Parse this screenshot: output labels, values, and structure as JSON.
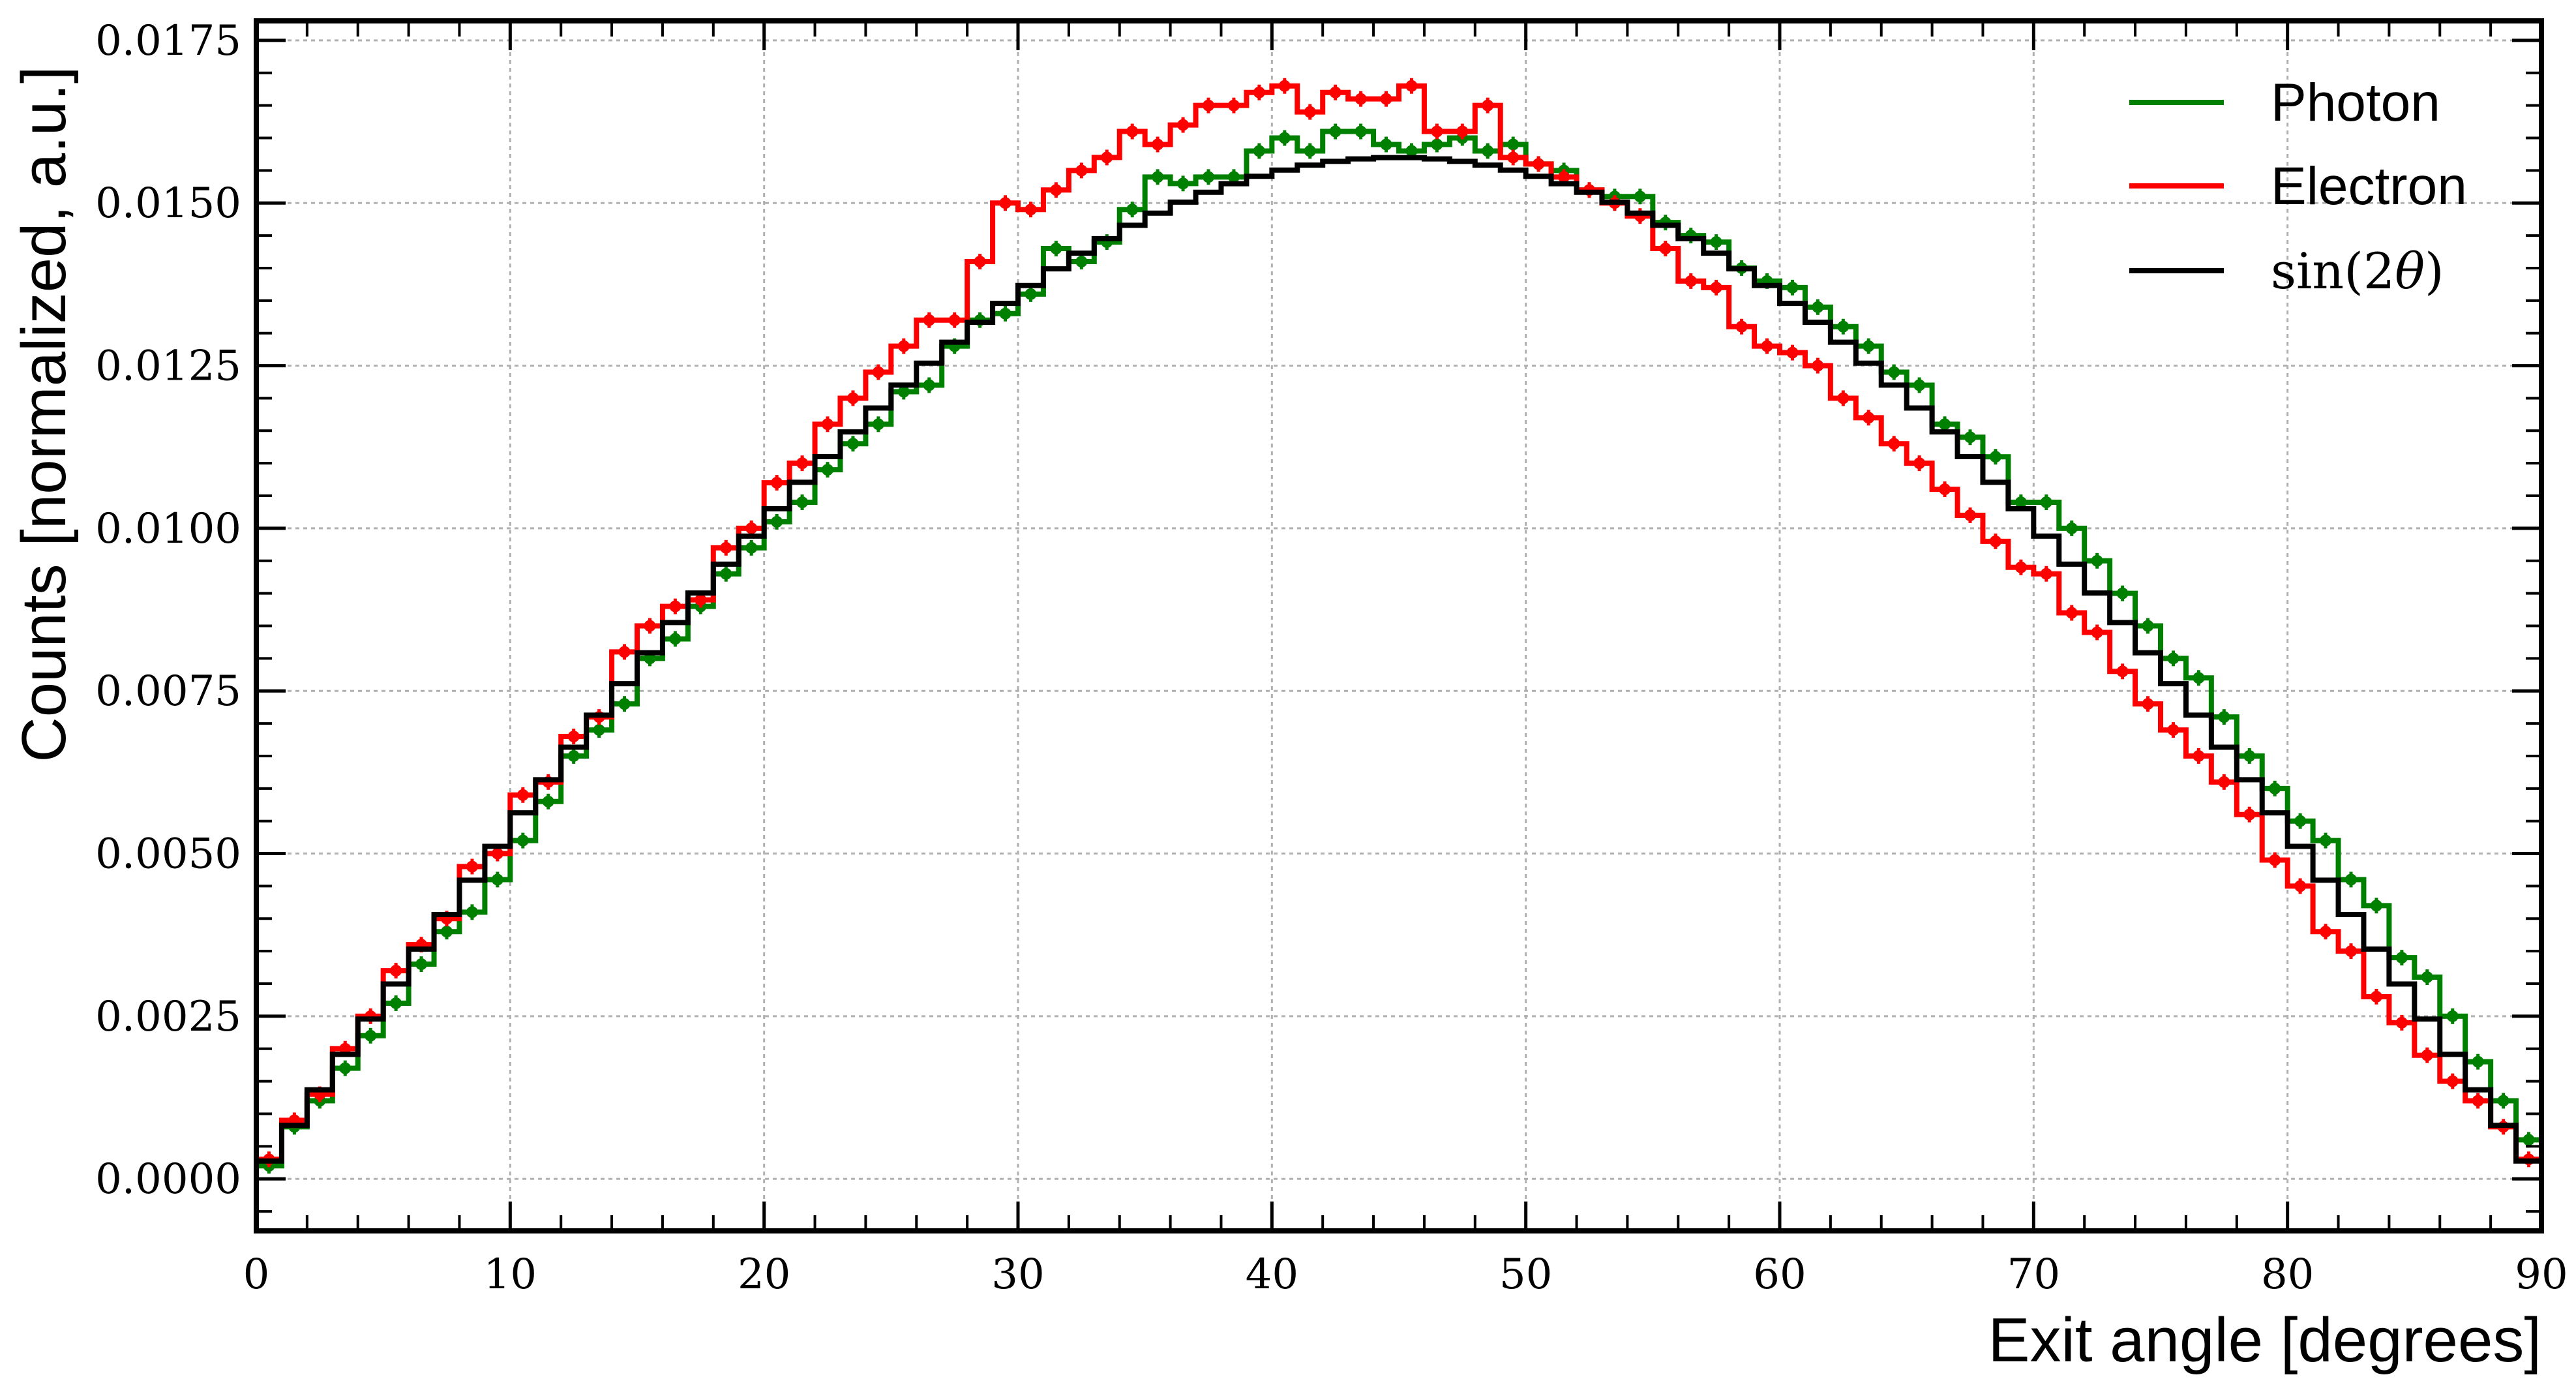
{
  "chart_data": {
    "type": "line",
    "xlabel": "Exit angle [degrees]",
    "ylabel": "Counts [normalized, a.u.]",
    "xlim": [
      0,
      90
    ],
    "ylim": [
      -0.0008,
      0.0178
    ],
    "xticks": [
      0,
      10,
      20,
      30,
      40,
      50,
      60,
      70,
      80,
      90
    ],
    "xtick_labels": [
      "0",
      "10",
      "20",
      "30",
      "40",
      "50",
      "60",
      "70",
      "80",
      "90"
    ],
    "yticks": [
      0.0,
      0.0025,
      0.005,
      0.0075,
      0.01,
      0.0125,
      0.015,
      0.0175
    ],
    "ytick_labels": [
      "0.0000",
      "0.0025",
      "0.0050",
      "0.0075",
      "0.0100",
      "0.0125",
      "0.0150",
      "0.0175"
    ],
    "grid": true,
    "legend_position": "top-right",
    "bin_width": 1,
    "bin_edges_start": 0,
    "series": [
      {
        "name": "Photon",
        "style": "step-with-errorbars",
        "color": "#008000",
        "error": 0.00012,
        "values": [
          0.0002,
          0.0008,
          0.0012,
          0.0017,
          0.0022,
          0.0027,
          0.0033,
          0.0038,
          0.0041,
          0.0046,
          0.0052,
          0.0058,
          0.0065,
          0.0069,
          0.0073,
          0.008,
          0.0083,
          0.0088,
          0.0093,
          0.0097,
          0.0101,
          0.0104,
          0.0109,
          0.0113,
          0.0116,
          0.0121,
          0.0122,
          0.0128,
          0.0132,
          0.0133,
          0.0136,
          0.0143,
          0.0141,
          0.0144,
          0.0149,
          0.0154,
          0.0153,
          0.0154,
          0.0154,
          0.0158,
          0.016,
          0.0158,
          0.0161,
          0.0161,
          0.0159,
          0.0158,
          0.0159,
          0.016,
          0.0158,
          0.0159,
          0.0156,
          0.0155,
          0.0152,
          0.0151,
          0.0151,
          0.0147,
          0.0145,
          0.0144,
          0.014,
          0.0138,
          0.0137,
          0.0134,
          0.0131,
          0.0128,
          0.0124,
          0.0122,
          0.0116,
          0.0114,
          0.0111,
          0.0104,
          0.0104,
          0.01,
          0.0095,
          0.009,
          0.0085,
          0.008,
          0.0077,
          0.0071,
          0.0065,
          0.006,
          0.0055,
          0.0052,
          0.0046,
          0.0042,
          0.0034,
          0.0031,
          0.0025,
          0.0018,
          0.0012,
          0.0006
        ]
      },
      {
        "name": "Electron",
        "style": "step-with-errorbars",
        "color": "#ff0000",
        "error": 0.00012,
        "values": [
          0.0003,
          0.0009,
          0.0013,
          0.002,
          0.0025,
          0.0032,
          0.0036,
          0.004,
          0.0048,
          0.005,
          0.0059,
          0.0061,
          0.0068,
          0.0071,
          0.0081,
          0.0085,
          0.0088,
          0.0089,
          0.0097,
          0.01,
          0.0107,
          0.011,
          0.0116,
          0.012,
          0.0124,
          0.0128,
          0.0132,
          0.0132,
          0.0141,
          0.015,
          0.0149,
          0.0152,
          0.0155,
          0.0157,
          0.0161,
          0.0159,
          0.0162,
          0.0165,
          0.0165,
          0.0167,
          0.0168,
          0.0164,
          0.0167,
          0.0166,
          0.0166,
          0.0168,
          0.0161,
          0.0161,
          0.0165,
          0.0157,
          0.0156,
          0.0154,
          0.0152,
          0.015,
          0.0148,
          0.0143,
          0.0138,
          0.0137,
          0.0131,
          0.0128,
          0.0127,
          0.0125,
          0.012,
          0.0117,
          0.0113,
          0.011,
          0.0106,
          0.0102,
          0.0098,
          0.0094,
          0.0093,
          0.0087,
          0.0084,
          0.0078,
          0.0073,
          0.0069,
          0.0065,
          0.0061,
          0.0056,
          0.0049,
          0.0045,
          0.0038,
          0.0035,
          0.0028,
          0.0024,
          0.0019,
          0.0015,
          0.0012,
          0.0008,
          0.0003
        ]
      },
      {
        "name": "sin(2θ)",
        "legend_label_prefix": "sin(2",
        "legend_label_symbol": "θ",
        "legend_label_suffix": ")",
        "style": "step",
        "color": "#000000",
        "function": "0.0157*sin(2θ) evaluated at bin centers"
      }
    ]
  }
}
